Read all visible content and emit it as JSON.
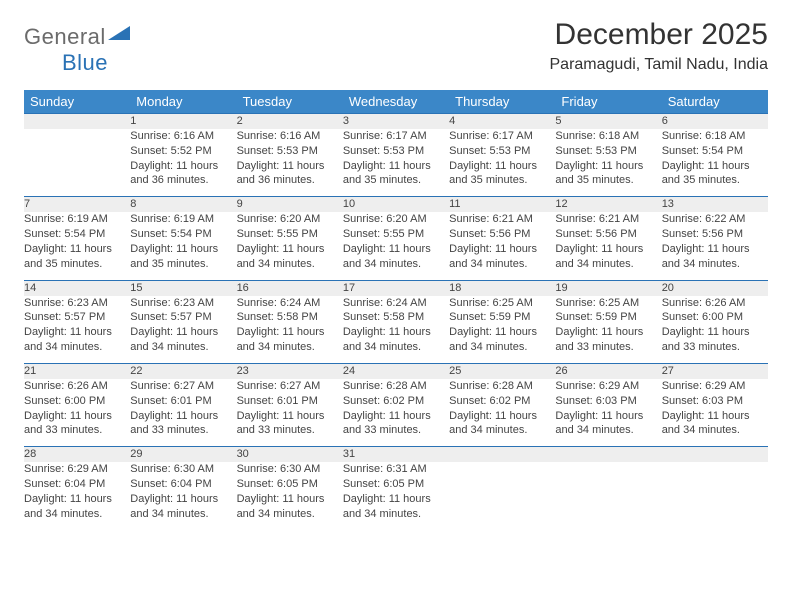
{
  "logo": {
    "general": "General",
    "blue": "Blue",
    "shape_color": "#2a72b5"
  },
  "title": "December 2025",
  "location": "Paramagudi, Tamil Nadu, India",
  "colors": {
    "header_bg": "#3b87c8",
    "header_text": "#ffffff",
    "daynum_bg": "#eeeeee",
    "row_border": "#2a72b5",
    "text": "#444444"
  },
  "weekdays": [
    "Sunday",
    "Monday",
    "Tuesday",
    "Wednesday",
    "Thursday",
    "Friday",
    "Saturday"
  ],
  "weeks": [
    [
      null,
      {
        "n": "1",
        "sr": "6:16 AM",
        "ss": "5:52 PM",
        "dl": "11 hours and 36 minutes."
      },
      {
        "n": "2",
        "sr": "6:16 AM",
        "ss": "5:53 PM",
        "dl": "11 hours and 36 minutes."
      },
      {
        "n": "3",
        "sr": "6:17 AM",
        "ss": "5:53 PM",
        "dl": "11 hours and 35 minutes."
      },
      {
        "n": "4",
        "sr": "6:17 AM",
        "ss": "5:53 PM",
        "dl": "11 hours and 35 minutes."
      },
      {
        "n": "5",
        "sr": "6:18 AM",
        "ss": "5:53 PM",
        "dl": "11 hours and 35 minutes."
      },
      {
        "n": "6",
        "sr": "6:18 AM",
        "ss": "5:54 PM",
        "dl": "11 hours and 35 minutes."
      }
    ],
    [
      {
        "n": "7",
        "sr": "6:19 AM",
        "ss": "5:54 PM",
        "dl": "11 hours and 35 minutes."
      },
      {
        "n": "8",
        "sr": "6:19 AM",
        "ss": "5:54 PM",
        "dl": "11 hours and 35 minutes."
      },
      {
        "n": "9",
        "sr": "6:20 AM",
        "ss": "5:55 PM",
        "dl": "11 hours and 34 minutes."
      },
      {
        "n": "10",
        "sr": "6:20 AM",
        "ss": "5:55 PM",
        "dl": "11 hours and 34 minutes."
      },
      {
        "n": "11",
        "sr": "6:21 AM",
        "ss": "5:56 PM",
        "dl": "11 hours and 34 minutes."
      },
      {
        "n": "12",
        "sr": "6:21 AM",
        "ss": "5:56 PM",
        "dl": "11 hours and 34 minutes."
      },
      {
        "n": "13",
        "sr": "6:22 AM",
        "ss": "5:56 PM",
        "dl": "11 hours and 34 minutes."
      }
    ],
    [
      {
        "n": "14",
        "sr": "6:23 AM",
        "ss": "5:57 PM",
        "dl": "11 hours and 34 minutes."
      },
      {
        "n": "15",
        "sr": "6:23 AM",
        "ss": "5:57 PM",
        "dl": "11 hours and 34 minutes."
      },
      {
        "n": "16",
        "sr": "6:24 AM",
        "ss": "5:58 PM",
        "dl": "11 hours and 34 minutes."
      },
      {
        "n": "17",
        "sr": "6:24 AM",
        "ss": "5:58 PM",
        "dl": "11 hours and 34 minutes."
      },
      {
        "n": "18",
        "sr": "6:25 AM",
        "ss": "5:59 PM",
        "dl": "11 hours and 34 minutes."
      },
      {
        "n": "19",
        "sr": "6:25 AM",
        "ss": "5:59 PM",
        "dl": "11 hours and 33 minutes."
      },
      {
        "n": "20",
        "sr": "6:26 AM",
        "ss": "6:00 PM",
        "dl": "11 hours and 33 minutes."
      }
    ],
    [
      {
        "n": "21",
        "sr": "6:26 AM",
        "ss": "6:00 PM",
        "dl": "11 hours and 33 minutes."
      },
      {
        "n": "22",
        "sr": "6:27 AM",
        "ss": "6:01 PM",
        "dl": "11 hours and 33 minutes."
      },
      {
        "n": "23",
        "sr": "6:27 AM",
        "ss": "6:01 PM",
        "dl": "11 hours and 33 minutes."
      },
      {
        "n": "24",
        "sr": "6:28 AM",
        "ss": "6:02 PM",
        "dl": "11 hours and 33 minutes."
      },
      {
        "n": "25",
        "sr": "6:28 AM",
        "ss": "6:02 PM",
        "dl": "11 hours and 34 minutes."
      },
      {
        "n": "26",
        "sr": "6:29 AM",
        "ss": "6:03 PM",
        "dl": "11 hours and 34 minutes."
      },
      {
        "n": "27",
        "sr": "6:29 AM",
        "ss": "6:03 PM",
        "dl": "11 hours and 34 minutes."
      }
    ],
    [
      {
        "n": "28",
        "sr": "6:29 AM",
        "ss": "6:04 PM",
        "dl": "11 hours and 34 minutes."
      },
      {
        "n": "29",
        "sr": "6:30 AM",
        "ss": "6:04 PM",
        "dl": "11 hours and 34 minutes."
      },
      {
        "n": "30",
        "sr": "6:30 AM",
        "ss": "6:05 PM",
        "dl": "11 hours and 34 minutes."
      },
      {
        "n": "31",
        "sr": "6:31 AM",
        "ss": "6:05 PM",
        "dl": "11 hours and 34 minutes."
      },
      null,
      null,
      null
    ]
  ],
  "labels": {
    "sunrise": "Sunrise:",
    "sunset": "Sunset:",
    "daylight": "Daylight:"
  }
}
